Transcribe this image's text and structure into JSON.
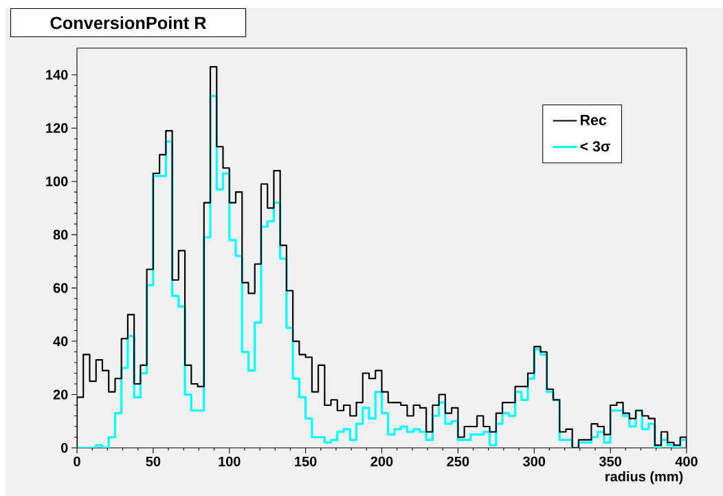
{
  "chart_data": {
    "type": "histogram",
    "title": "ConversionPoint R",
    "xlabel": "radius (mm)",
    "bins": [
      0,
      4.17,
      8.33,
      12.5,
      16.67,
      20.83,
      25,
      29.17,
      33.33,
      37.5,
      41.67,
      45.83,
      50,
      54.17,
      58.33,
      62.5,
      66.67,
      70.83,
      75,
      79.17,
      83.33,
      87.5,
      91.67,
      95.83,
      100,
      104.17,
      108.33,
      112.5,
      116.67,
      120.83,
      125,
      129.17,
      133.33,
      137.5,
      141.67,
      145.83,
      150,
      154.17,
      158.33,
      162.5,
      166.67,
      170.83,
      175,
      179.17,
      183.33,
      187.5,
      191.67,
      195.83,
      200,
      204.17,
      208.33,
      212.5,
      216.67,
      220.83,
      225,
      229.17,
      233.33,
      237.5,
      241.67,
      245.83,
      250,
      254.17,
      258.33,
      262.5,
      266.67,
      270.83,
      275,
      279.17,
      283.33,
      287.5,
      291.67,
      295.83,
      300,
      304.17,
      308.33,
      312.5,
      316.67,
      320.83,
      325,
      329.17,
      333.33,
      337.5,
      341.67,
      345.83,
      350,
      354.17,
      358.33,
      362.5,
      366.67,
      370.83,
      375,
      379.17,
      383.33,
      387.5,
      391.67,
      395.83,
      400
    ],
    "series": [
      {
        "name": "Rec",
        "color": "#000000",
        "values": [
          19,
          35,
          25,
          33,
          29,
          21,
          26,
          41,
          50,
          24,
          31,
          67,
          103,
          110,
          119,
          63,
          74,
          31,
          24,
          23,
          92,
          143,
          113,
          105,
          92,
          96,
          62,
          58,
          69,
          99,
          90,
          104,
          76,
          59,
          40,
          35,
          34,
          21,
          31,
          16,
          18,
          14,
          16,
          12,
          17,
          28,
          26,
          29,
          21,
          17,
          17,
          16,
          12,
          16,
          15,
          6,
          16,
          20,
          13,
          15,
          4,
          8,
          8,
          12,
          8,
          6,
          13,
          17,
          17,
          23,
          23,
          28,
          38,
          36,
          22,
          18,
          6,
          7,
          0,
          3,
          3,
          9,
          8,
          5,
          16,
          17,
          13,
          11,
          14,
          12,
          11,
          1,
          6,
          2,
          1,
          4
        ]
      },
      {
        "name": "< 3σ",
        "color": "#00ffff",
        "values": [
          0,
          0,
          0,
          1,
          0,
          4,
          13,
          30,
          42,
          19,
          28,
          61,
          102,
          102,
          115,
          57,
          53,
          20,
          14,
          14,
          79,
          132,
          97,
          103,
          78,
          72,
          36,
          29,
          47,
          83,
          85,
          92,
          71,
          45,
          26,
          19,
          11,
          4,
          4,
          2,
          3,
          6,
          7,
          3,
          9,
          15,
          11,
          21,
          13,
          5,
          7,
          8,
          6,
          7,
          6,
          3,
          12,
          17,
          9,
          10,
          3,
          3,
          5,
          5,
          6,
          1,
          9,
          13,
          12,
          21,
          18,
          26,
          37,
          35,
          21,
          18,
          3,
          3,
          0,
          2,
          2,
          4,
          6,
          2,
          14,
          14,
          12,
          8,
          14,
          7,
          9,
          0,
          3,
          1,
          0,
          3
        ]
      }
    ],
    "xlim": [
      0,
      400
    ],
    "ylim": [
      0,
      150
    ],
    "xticks": [
      0,
      50,
      100,
      150,
      200,
      250,
      300,
      350,
      400
    ],
    "yticks": [
      0,
      20,
      40,
      60,
      80,
      100,
      120,
      140
    ],
    "legend": "top right"
  }
}
